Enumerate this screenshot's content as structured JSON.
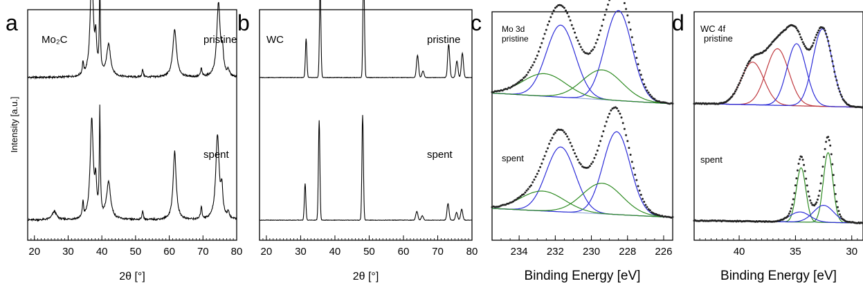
{
  "chart_data": [
    {
      "type": "line",
      "panel_letter": "a",
      "xlabel": "2θ [°]",
      "ylabel": "Intensity [a.u.]",
      "xlim": [
        18,
        80
      ],
      "x_ticks": [
        20,
        30,
        40,
        50,
        60,
        70,
        80
      ],
      "sample": "Mo₂C",
      "series": [
        {
          "name": "pristine",
          "baseline": 0.12,
          "peaks": [
            [
              34.4,
              0.12,
              0.35
            ],
            [
              37.0,
              1.0,
              0.9
            ],
            [
              38.2,
              0.3,
              0.5
            ],
            [
              39.4,
              0.85,
              0.3
            ],
            [
              42.0,
              0.3,
              1.2
            ],
            [
              52.1,
              0.07,
              0.4
            ],
            [
              61.6,
              0.45,
              1.1
            ],
            [
              69.5,
              0.08,
              0.4
            ],
            [
              74.6,
              0.7,
              1.0
            ],
            [
              75.8,
              0.2,
              0.6
            ],
            [
              77.5,
              0.06,
              0.6
            ]
          ]
        },
        {
          "name": "spent",
          "baseline": 0.12,
          "peaks": [
            [
              25.9,
              0.08,
              1.3
            ],
            [
              34.4,
              0.15,
              0.35
            ],
            [
              37.0,
              0.95,
              0.9
            ],
            [
              38.2,
              0.3,
              0.5
            ],
            [
              39.4,
              1.0,
              0.3
            ],
            [
              42.0,
              0.35,
              1.2
            ],
            [
              52.1,
              0.08,
              0.4
            ],
            [
              61.6,
              0.65,
              0.9
            ],
            [
              69.5,
              0.12,
              0.4
            ],
            [
              74.3,
              0.8,
              1.0
            ],
            [
              75.6,
              0.25,
              0.6
            ],
            [
              77.5,
              0.06,
              0.6
            ]
          ]
        }
      ]
    },
    {
      "type": "line",
      "panel_letter": "b",
      "xlabel": "2θ [°]",
      "xlim": [
        18,
        80
      ],
      "x_ticks": [
        20,
        30,
        40,
        50,
        60,
        70,
        80
      ],
      "sample": "WC",
      "series": [
        {
          "name": "pristine",
          "baseline": 0.0,
          "peaks": [
            [
              31.6,
              0.35,
              0.22
            ],
            [
              35.7,
              0.8,
              0.22
            ],
            [
              48.4,
              1.0,
              0.22
            ],
            [
              64.1,
              0.2,
              0.3
            ],
            [
              65.7,
              0.06,
              0.3
            ],
            [
              73.2,
              0.3,
              0.3
            ],
            [
              75.6,
              0.15,
              0.3
            ],
            [
              77.2,
              0.22,
              0.3
            ]
          ]
        },
        {
          "name": "spent",
          "baseline": 0.0,
          "peaks": [
            [
              31.3,
              0.33,
              0.22
            ],
            [
              35.4,
              0.9,
              0.22
            ],
            [
              48.1,
              0.95,
              0.22
            ],
            [
              63.9,
              0.08,
              0.3
            ],
            [
              65.5,
              0.04,
              0.3
            ],
            [
              73.0,
              0.15,
              0.3
            ],
            [
              75.5,
              0.07,
              0.3
            ],
            [
              77.0,
              0.1,
              0.3
            ]
          ]
        }
      ]
    },
    {
      "type": "line",
      "panel_letter": "c",
      "xlabel": "Binding Energy [eV]",
      "xlim": [
        235.5,
        225.5
      ],
      "x_ticks": [
        234,
        232,
        230,
        228,
        226
      ],
      "series_labels": [
        "Mo 3d",
        "pristine",
        "spent"
      ],
      "spectra": [
        {
          "name": "pristine",
          "components": [
            {
              "color": "#2b2bd8",
              "center": 231.7,
              "height": 0.8,
              "width": 0.8
            },
            {
              "color": "#2b2bd8",
              "center": 228.5,
              "height": 1.0,
              "width": 0.75
            },
            {
              "color": "#2e8b22",
              "center": 232.6,
              "height": 0.25,
              "width": 1.2
            },
            {
              "color": "#2e8b22",
              "center": 229.4,
              "height": 0.33,
              "width": 1.1
            }
          ],
          "background": [
            0.12,
            0.0
          ]
        },
        {
          "name": "spent",
          "components": [
            {
              "color": "#2b2bd8",
              "center": 231.7,
              "height": 0.72,
              "width": 0.8
            },
            {
              "color": "#2b2bd8",
              "center": 228.6,
              "height": 0.92,
              "width": 0.75
            },
            {
              "color": "#2e8b22",
              "center": 232.7,
              "height": 0.22,
              "width": 1.2
            },
            {
              "color": "#2e8b22",
              "center": 229.4,
              "height": 0.34,
              "width": 1.1
            }
          ],
          "background": [
            0.1,
            0.0
          ]
        }
      ]
    },
    {
      "type": "line",
      "panel_letter": "d",
      "xlabel": "Binding Energy [eV]",
      "xlim": [
        44,
        29
      ],
      "x_ticks": [
        40,
        35,
        30
      ],
      "series_labels": [
        "WC 4f",
        "pristine",
        "spent"
      ],
      "spectra": [
        {
          "name": "pristine",
          "components": [
            {
              "color": "#c0393f",
              "center": 38.8,
              "height": 0.55,
              "width": 1.0
            },
            {
              "color": "#c0393f",
              "center": 36.6,
              "height": 0.73,
              "width": 1.0
            },
            {
              "color": "#2b2bd8",
              "center": 34.9,
              "height": 0.8,
              "width": 0.85
            },
            {
              "color": "#2b2bd8",
              "center": 32.6,
              "height": 1.0,
              "width": 0.85
            }
          ],
          "background": [
            0.05,
            0.0
          ]
        },
        {
          "name": "spent",
          "components": [
            {
              "color": "#2e8b22",
              "center": 34.5,
              "height": 0.7,
              "width": 0.42
            },
            {
              "color": "#2e8b22",
              "center": 32.1,
              "height": 0.9,
              "width": 0.42
            },
            {
              "color": "#2b2bd8",
              "center": 34.6,
              "height": 0.13,
              "width": 0.9
            },
            {
              "color": "#2b2bd8",
              "center": 32.5,
              "height": 0.22,
              "width": 0.9
            }
          ],
          "background": [
            0.03,
            0.0
          ]
        }
      ]
    }
  ]
}
